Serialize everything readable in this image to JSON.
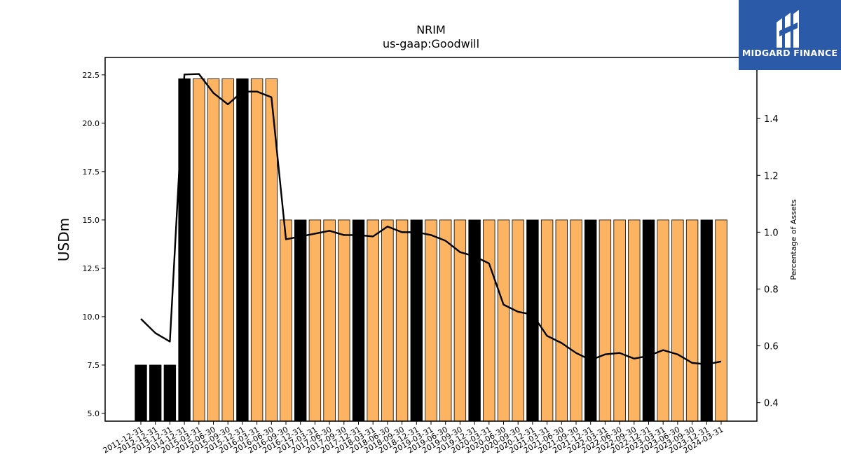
{
  "brand": {
    "name": "MIDGARD FINANCE",
    "bg_color": "#2a5aa8"
  },
  "chart_data": {
    "type": "bar",
    "title": "NRIM",
    "subtitle": "us-gaap:Goodwill",
    "ylabel": "USDm",
    "y2label": "Percentage of Assets",
    "ylim": [
      4.6,
      23.4
    ],
    "y2lim": [
      0.335,
      1.615
    ],
    "yticks": [
      "5.0",
      "7.5",
      "10.0",
      "12.5",
      "15.0",
      "17.5",
      "20.0",
      "22.5"
    ],
    "y2ticks": [
      "0.4",
      "0.6",
      "0.8",
      "1.0",
      "1.2",
      "1.4"
    ],
    "categories": [
      "2011-12-31",
      "2012-12-31",
      "2013-12-31",
      "2014-12-31",
      "2015-03-31",
      "2015-06-30",
      "2015-09-30",
      "2015-12-31",
      "2016-03-31",
      "2016-06-30",
      "2016-09-30",
      "2016-12-31",
      "2017-03-31",
      "2017-06-30",
      "2017-09-30",
      "2017-12-31",
      "2018-03-31",
      "2018-06-30",
      "2018-09-30",
      "2018-12-31",
      "2019-03-31",
      "2019-06-30",
      "2019-09-30",
      "2019-12-31",
      "2020-03-31",
      "2020-06-30",
      "2020-09-30",
      "2020-12-31",
      "2021-03-31",
      "2021-06-30",
      "2021-09-30",
      "2021-12-31",
      "2022-03-31",
      "2022-06-30",
      "2022-09-30",
      "2022-12-31",
      "2023-03-31",
      "2023-06-30",
      "2023-09-30",
      "2023-12-31",
      "2024-03-31"
    ],
    "series": [
      {
        "type": "bar",
        "axis": "left",
        "values": [
          7.5,
          7.5,
          7.5,
          22.3,
          22.3,
          22.3,
          22.3,
          22.3,
          22.3,
          22.3,
          15.0,
          15.0,
          15.0,
          15.0,
          15.0,
          15.0,
          15.0,
          15.0,
          15.0,
          15.0,
          15.0,
          15.0,
          15.0,
          15.0,
          15.0,
          15.0,
          15.0,
          15.0,
          15.0,
          15.0,
          15.0,
          15.0,
          15.0,
          15.0,
          15.0,
          15.0,
          15.0,
          15.0,
          15.0,
          15.0,
          15.0
        ],
        "annual_color": "#000000",
        "quarter_color": "#fdb462"
      },
      {
        "type": "line",
        "axis": "right",
        "color": "#000000",
        "values": [
          0.695,
          0.645,
          0.615,
          1.555,
          1.557,
          1.49,
          1.45,
          1.495,
          1.495,
          1.475,
          0.975,
          0.985,
          0.995,
          1.005,
          0.99,
          0.99,
          0.985,
          1.02,
          1.0,
          1.0,
          0.99,
          0.97,
          0.93,
          0.915,
          0.89,
          0.745,
          0.72,
          0.71,
          0.635,
          0.61,
          0.575,
          0.55,
          0.57,
          0.575,
          0.555,
          0.565,
          0.585,
          0.57,
          0.54,
          0.535,
          0.545
        ]
      }
    ]
  }
}
